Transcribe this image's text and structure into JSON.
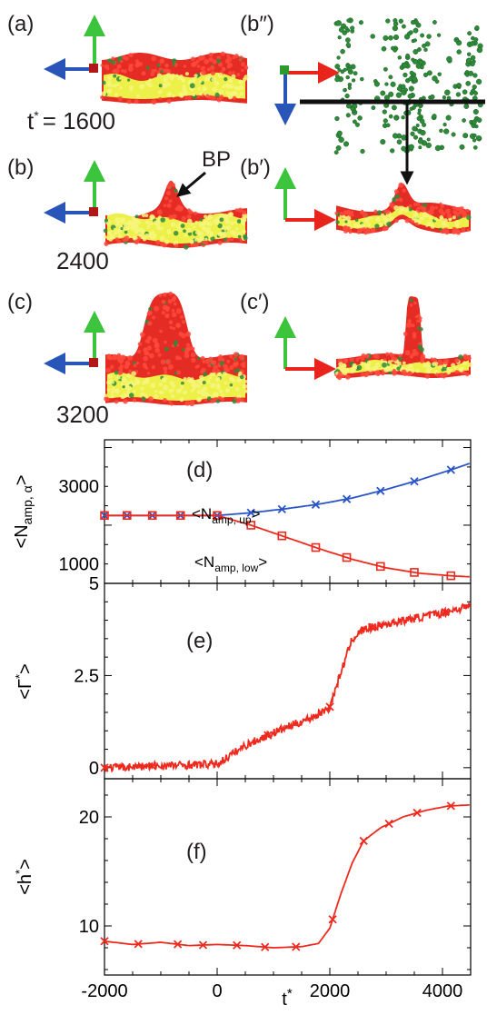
{
  "panels": {
    "a": "(a)",
    "b": "(b)",
    "c": "(c)",
    "b_prime": "(b′)",
    "b_double_prime": "(b″)",
    "c_prime": "(c′)",
    "d": "(d)",
    "e": "(e)",
    "f": "(f)"
  },
  "times": {
    "t_symbol": "t",
    "t_star": "*",
    "t1600": "= 1600",
    "t2400": "2400",
    "t3200": "3200"
  },
  "annotations": {
    "bp": "BP"
  },
  "colors": {
    "lipid_head": "#e42b24",
    "lipid_tail": "#eef04a",
    "amphiphile": "#2e8b3a",
    "axis_x": "#e8241c",
    "axis_y": "#3cc43c",
    "axis_z": "#2a55b8",
    "series_up": "#2a55c6",
    "series_low": "#ee2a1e"
  },
  "chart_data": [
    {
      "type": "line",
      "panel": "(d)",
      "ylabel_main": "<N",
      "ylabel_sub": "amp, α",
      "ylabel_end": ">",
      "xlim": [
        -2000,
        4500
      ],
      "ylim": [
        500,
        4200
      ],
      "yticks": [
        1000,
        3000
      ],
      "ytick_labels": [
        "1000",
        "3000"
      ],
      "annotation_up": {
        "main": "<N",
        "sub": "amp, up",
        "end": ">"
      },
      "annotation_low": {
        "main": "<N",
        "sub": "amp, low",
        "end": ">"
      },
      "series": [
        {
          "key": "up",
          "marker": "x",
          "x": [
            -2000,
            -1400,
            -800,
            -200,
            0,
            600,
            1200,
            1800,
            2400,
            3000,
            3600,
            4200,
            4500
          ],
          "y": [
            2250,
            2250,
            2250,
            2250,
            2250,
            2320,
            2420,
            2540,
            2700,
            2920,
            3170,
            3450,
            3600
          ],
          "marker_x": [
            -2000,
            -1600,
            -1150,
            -650,
            0,
            600,
            1150,
            1750,
            2300,
            2900,
            3500,
            4150
          ]
        },
        {
          "key": "low",
          "marker": "square",
          "x": [
            -2000,
            -1400,
            -800,
            -200,
            0,
            600,
            1200,
            1800,
            2400,
            3000,
            3600,
            4200,
            4500
          ],
          "y": [
            2250,
            2250,
            2250,
            2250,
            2250,
            2000,
            1700,
            1400,
            1120,
            900,
            760,
            690,
            670
          ],
          "marker_x": [
            -2000,
            -1600,
            -1150,
            -650,
            0,
            600,
            1150,
            1750,
            2300,
            2900,
            3500,
            4150
          ]
        }
      ]
    },
    {
      "type": "line",
      "panel": "(e)",
      "ylabel_main": "<Γ",
      "ylabel_sup": "*",
      "ylabel_end": ">",
      "xlim": [
        -2000,
        4500
      ],
      "ylim": [
        -0.3,
        5.0
      ],
      "yticks": [
        0,
        2.5,
        5
      ],
      "ytick_labels": [
        "0",
        "2.5",
        "5"
      ],
      "series": [
        {
          "key": "gamma",
          "marker": "x",
          "x": [
            -2000,
            -1000,
            0,
            500,
            1000,
            1500,
            1800,
            2000,
            2200,
            2400,
            2600,
            3000,
            3500,
            4000,
            4500
          ],
          "y": [
            0.0,
            0.05,
            0.1,
            0.6,
            0.95,
            1.25,
            1.45,
            1.65,
            2.6,
            3.5,
            3.75,
            3.9,
            4.05,
            4.2,
            4.4
          ],
          "marker_x": [
            -2000,
            -1150,
            900,
            2000,
            2750,
            4050
          ]
        }
      ]
    },
    {
      "type": "line",
      "panel": "(f)",
      "ylabel_main": "<h",
      "ylabel_sup": "*",
      "ylabel_end": ">",
      "xlabel_main": "t",
      "xlabel_sup": "*",
      "xlim": [
        -2000,
        4500
      ],
      "ylim": [
        5.5,
        23.5
      ],
      "yticks": [
        10,
        20
      ],
      "ytick_labels": [
        "10",
        "20"
      ],
      "xticks": [
        -2000,
        0,
        2000,
        4000
      ],
      "xtick_labels": [
        "-2000",
        "0",
        "2000",
        "4000"
      ],
      "series": [
        {
          "key": "h",
          "marker": "x",
          "x": [
            -2000,
            -1500,
            -1000,
            -500,
            0,
            500,
            1000,
            1500,
            1800,
            2000,
            2200,
            2400,
            2600,
            2900,
            3300,
            3700,
            4100,
            4500
          ],
          "y": [
            8.6,
            8.3,
            8.5,
            8.2,
            8.3,
            8.2,
            8.0,
            8.1,
            8.4,
            9.8,
            13.0,
            15.8,
            17.8,
            19.0,
            20.0,
            20.6,
            21.0,
            21.1
          ],
          "marker_x": [
            -2000,
            -1400,
            -700,
            -250,
            350,
            850,
            1400,
            2050,
            2600,
            3050,
            3550,
            4150
          ]
        }
      ]
    }
  ]
}
